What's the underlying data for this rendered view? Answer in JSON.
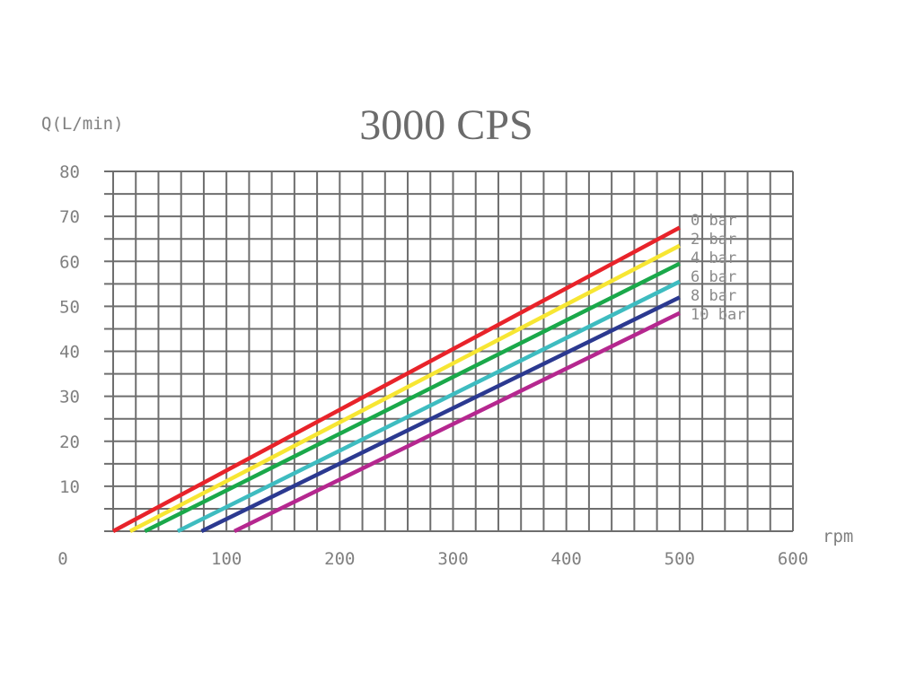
{
  "chart_data": {
    "type": "line",
    "title": "3000 CPS",
    "ylabel": "Q(L/min)",
    "xlabel": "rpm",
    "xlim": [
      0,
      600
    ],
    "ylim": [
      0,
      80
    ],
    "x_ticks": [
      "0",
      "100",
      "200",
      "300",
      "400",
      "500",
      "600"
    ],
    "y_ticks": [
      "10",
      "20",
      "30",
      "40",
      "50",
      "60",
      "70",
      "80"
    ],
    "grid": true,
    "legend_placement": "right-of-line-ends",
    "series": [
      {
        "name": "0 bar",
        "color": "#e8232a",
        "x": [
          0,
          500
        ],
        "y": [
          0,
          67.5
        ]
      },
      {
        "name": "2 bar",
        "color": "#f7e633",
        "x": [
          15,
          500
        ],
        "y": [
          0,
          63.5
        ]
      },
      {
        "name": "4 bar",
        "color": "#1aa84a",
        "x": [
          28,
          500
        ],
        "y": [
          0,
          59.5
        ]
      },
      {
        "name": "6 bar",
        "color": "#3ebcc0",
        "x": [
          57,
          500
        ],
        "y": [
          0,
          55.5
        ]
      },
      {
        "name": "8 bar",
        "color": "#2b3990",
        "x": [
          78,
          500
        ],
        "y": [
          0,
          52
        ]
      },
      {
        "name": "10 bar",
        "color": "#b5278f",
        "x": [
          107,
          500
        ],
        "y": [
          0,
          48.5
        ]
      }
    ]
  }
}
